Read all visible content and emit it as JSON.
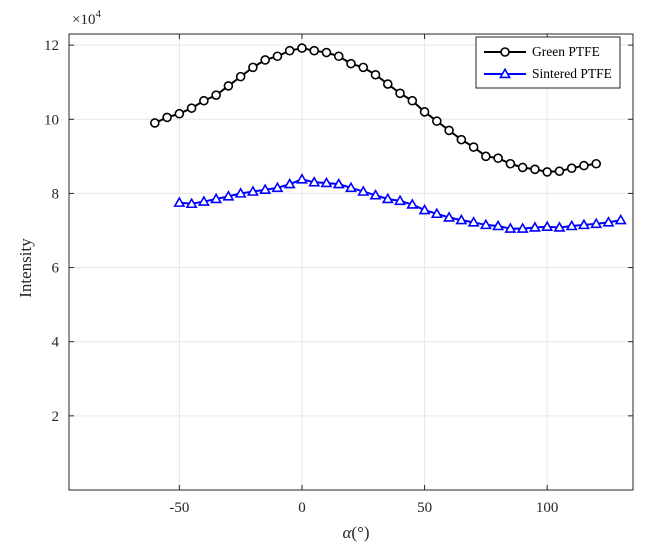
{
  "chart_data": {
    "type": "line",
    "title": "",
    "xlabel_symbol": "α",
    "xlabel_unit": "(°)",
    "ylabel": "Intensity",
    "y_multiplier": "×10",
    "y_multiplier_exp": "4",
    "xlim": [
      -95,
      135
    ],
    "ylim": [
      0,
      12.3
    ],
    "xticks": [
      -50,
      0,
      50,
      100
    ],
    "yticks": [
      2,
      4,
      6,
      8,
      10,
      12
    ],
    "grid": true,
    "legend_position": "top-right",
    "series": [
      {
        "name": "Green PTFE",
        "color": "#000000",
        "marker": "circle",
        "x": [
          -60,
          -55,
          -50,
          -45,
          -40,
          -35,
          -30,
          -25,
          -20,
          -15,
          -10,
          -5,
          0,
          5,
          10,
          15,
          20,
          25,
          30,
          35,
          40,
          45,
          50,
          55,
          60,
          65,
          70,
          75,
          80,
          85,
          90,
          95,
          100,
          105,
          110,
          115,
          120
        ],
        "y": [
          9.9,
          10.05,
          10.15,
          10.3,
          10.5,
          10.65,
          10.9,
          11.15,
          11.4,
          11.6,
          11.7,
          11.85,
          11.92,
          11.85,
          11.8,
          11.7,
          11.5,
          11.4,
          11.2,
          10.95,
          10.7,
          10.5,
          10.2,
          9.95,
          9.7,
          9.45,
          9.25,
          9.0,
          8.95,
          8.8,
          8.7,
          8.65,
          8.58,
          8.6,
          8.68,
          8.75,
          8.8
        ]
      },
      {
        "name": "Sintered PTFE",
        "color": "#0000ff",
        "marker": "triangle",
        "x": [
          -50,
          -45,
          -40,
          -35,
          -30,
          -25,
          -20,
          -15,
          -10,
          -5,
          0,
          5,
          10,
          15,
          20,
          25,
          30,
          35,
          40,
          45,
          50,
          55,
          60,
          65,
          70,
          75,
          80,
          85,
          90,
          95,
          100,
          105,
          110,
          115,
          120,
          125,
          130
        ],
        "y": [
          7.75,
          7.72,
          7.78,
          7.85,
          7.92,
          8.0,
          8.05,
          8.1,
          8.15,
          8.25,
          8.38,
          8.3,
          8.28,
          8.25,
          8.15,
          8.05,
          7.95,
          7.85,
          7.8,
          7.7,
          7.55,
          7.45,
          7.35,
          7.28,
          7.22,
          7.15,
          7.12,
          7.05,
          7.05,
          7.08,
          7.1,
          7.08,
          7.12,
          7.15,
          7.18,
          7.22,
          7.28
        ]
      }
    ]
  }
}
